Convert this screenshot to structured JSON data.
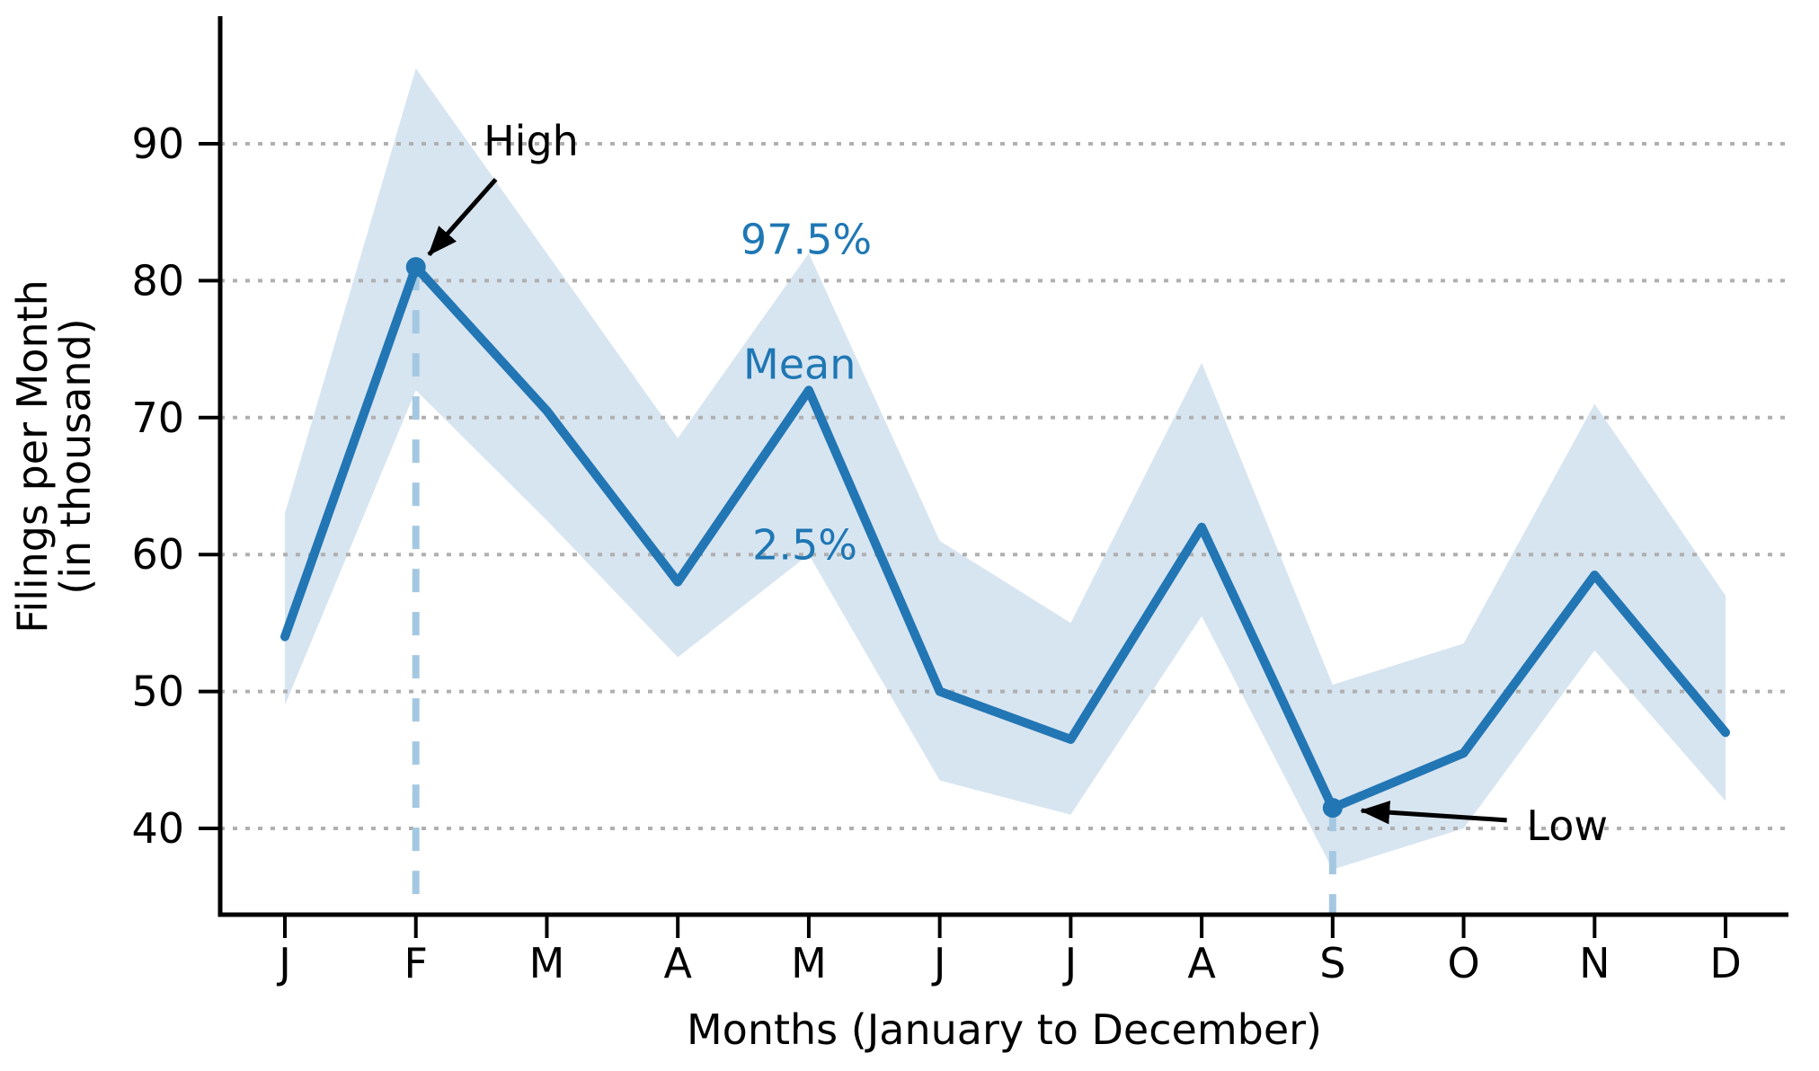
{
  "chart_data": {
    "type": "line",
    "title": "",
    "xlabel": "Months (January to December)",
    "ylabel_lines": [
      "Filings per Month",
      "(in thousand)"
    ],
    "categories": [
      "J",
      "F",
      "M",
      "A",
      "M",
      "J",
      "J",
      "A",
      "S",
      "O",
      "N",
      "D"
    ],
    "y_ticks": [
      40,
      50,
      60,
      70,
      80,
      90
    ],
    "ylim": [
      33.8,
      99.3
    ],
    "grid": {
      "axis": "y",
      "style": "dotted",
      "color": "#b0b0b0"
    },
    "legend_position": "none",
    "series": [
      {
        "name": "Mean",
        "role": "mean-line",
        "values": [
          54,
          81,
          70.5,
          58,
          72,
          50,
          46.5,
          62,
          41.5,
          45.5,
          58.5,
          47
        ]
      },
      {
        "name": "97.5%",
        "role": "band-upper",
        "values": [
          63,
          95.5,
          82,
          68.5,
          82,
          61,
          55,
          74,
          50.5,
          53.5,
          71,
          57
        ]
      },
      {
        "name": "2.5%",
        "role": "band-lower",
        "values": [
          49,
          72,
          62.5,
          52.5,
          60,
          43.5,
          41,
          55.5,
          37,
          40,
          53,
          42
        ]
      }
    ],
    "highlight_points": [
      {
        "label": "High",
        "month_index": 1,
        "month": "February",
        "value": 81
      },
      {
        "label": "Low",
        "month_index": 8,
        "month": "September",
        "value": 41.5
      }
    ],
    "annotations": [
      {
        "id": "high-label",
        "text": "High",
        "color": "#000000",
        "x": 1.88,
        "y": 90.2,
        "arrow": {
          "from": [
            1.61,
            87.4
          ],
          "to": [
            1.1,
            81.9
          ]
        }
      },
      {
        "id": "low-label",
        "text": "Low",
        "color": "#000000",
        "x": 9.79,
        "y": 40.2,
        "arrow": {
          "from": [
            9.33,
            40.6
          ],
          "to": [
            8.22,
            41.3
          ]
        }
      },
      {
        "id": "upper-band-label",
        "text": "97.5%",
        "color": "#1f77b4",
        "x": 3.98,
        "y": 83.0
      },
      {
        "id": "mean-label",
        "text": "Mean",
        "color": "#1f77b4",
        "x": 3.93,
        "y": 73.9
      },
      {
        "id": "lower-band-label",
        "text": "2.5%",
        "color": "#1f77b4",
        "x": 3.97,
        "y": 60.7
      }
    ],
    "colors": {
      "mean_line": "#2276b4",
      "marker": "#2276b4",
      "band_fill": "#d7e5f1",
      "dashed_guide": "#a5c8e2",
      "grid": "#b0b0b0",
      "axis": "#000000",
      "tick_label": "#000000",
      "annotation_blue": "#1f77b4"
    }
  }
}
